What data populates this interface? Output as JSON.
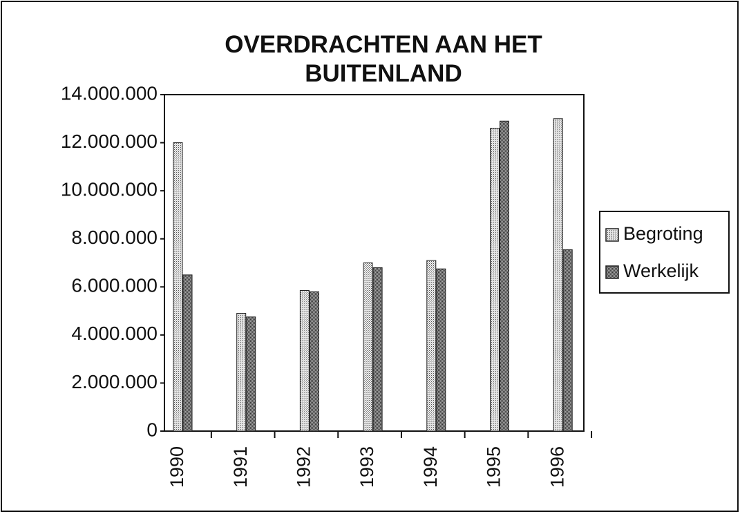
{
  "chart_data": {
    "type": "bar",
    "title": "OVERDRACHTEN AAN HET BUITENLAND",
    "categories": [
      "1990",
      "1991",
      "1992",
      "1993",
      "1994",
      "1995",
      "1996"
    ],
    "series": [
      {
        "name": "Begroting",
        "color": "#c4c4c4",
        "values": [
          12000000,
          4900000,
          5850000,
          7000000,
          7100000,
          12600000,
          13000000
        ]
      },
      {
        "name": "Werkelijk",
        "color": "#8a8a8a",
        "values": [
          6500000,
          4750000,
          5800000,
          6800000,
          6750000,
          12900000,
          7550000
        ]
      }
    ],
    "ylim": [
      0,
      14000000
    ],
    "yticks": [
      0,
      {
        "value": 2000000,
        "label": "2.000.000"
      },
      {
        "value": 4000000,
        "label": "4.000.000"
      },
      {
        "value": 6000000,
        "label": "6.000.000"
      },
      {
        "value": 8000000,
        "label": "8.000.000"
      },
      {
        "value": 10000000,
        "label": "10.000.000"
      },
      {
        "value": 12000000,
        "label": "12.000.000"
      },
      {
        "value": 14000000,
        "label": "14.000.000"
      }
    ],
    "legend": "right"
  }
}
